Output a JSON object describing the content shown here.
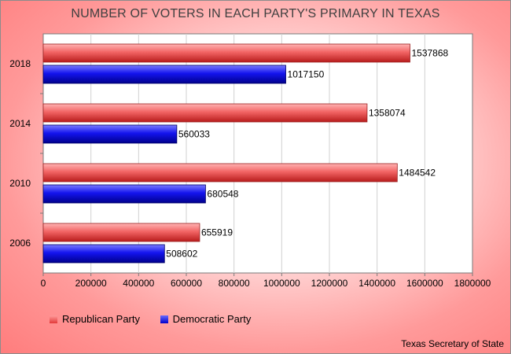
{
  "chart_data": {
    "type": "bar",
    "orientation": "horizontal",
    "title": "NUMBER OF VOTERS IN EACH PARTY'S PRIMARY IN TEXAS",
    "categories": [
      "2018",
      "2014",
      "2010",
      "2006"
    ],
    "series": [
      {
        "name": "Republican Party",
        "color": "#e84a4a",
        "values": [
          1537868,
          1358074,
          1484542,
          655919
        ]
      },
      {
        "name": "Democratic Party",
        "color": "#1010e8",
        "values": [
          1017150,
          560033,
          680548,
          508602
        ]
      }
    ],
    "xlim": [
      0,
      1800000
    ],
    "xticks": [
      "0",
      "200000",
      "400000",
      "600000",
      "800000",
      "1000000",
      "1200000",
      "1400000",
      "1600000",
      "1800000"
    ],
    "grid": true,
    "legend_position": "bottom-left",
    "source": "Texas Secretary of State"
  }
}
